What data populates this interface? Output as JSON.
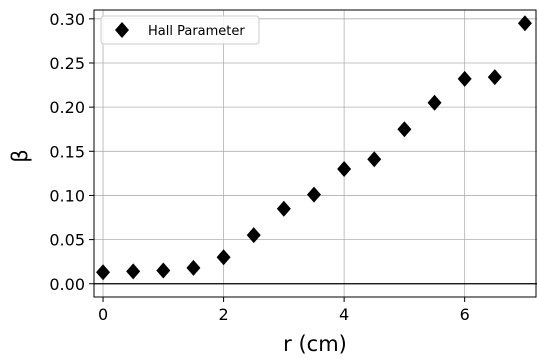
{
  "chart_data": {
    "type": "scatter",
    "title": "",
    "xlabel": "r (cm)",
    "ylabel": "β",
    "xlim": [
      -0.15,
      7.2
    ],
    "ylim": [
      -0.015,
      0.31
    ],
    "xticks": [
      0,
      2,
      4,
      6
    ],
    "xtick_labels": [
      "0",
      "2",
      "4",
      "6"
    ],
    "yticks": [
      0.0,
      0.05,
      0.1,
      0.15,
      0.2,
      0.25,
      0.3
    ],
    "ytick_labels": [
      "0.00",
      "0.05",
      "0.10",
      "0.15",
      "0.20",
      "0.25",
      "0.30"
    ],
    "grid": true,
    "zero_line": true,
    "legend_position": "top-left",
    "series": [
      {
        "name": "Hall Parameter",
        "marker": "diamond",
        "color": "#000000",
        "x": [
          0,
          0.5,
          1,
          1.5,
          2,
          2.5,
          3,
          3.5,
          4,
          4.5,
          5,
          5.5,
          6,
          6.5,
          7
        ],
        "y": [
          0.013,
          0.014,
          0.015,
          0.018,
          0.03,
          0.055,
          0.085,
          0.101,
          0.13,
          0.141,
          0.175,
          0.205,
          0.232,
          0.234,
          0.295
        ]
      }
    ]
  }
}
